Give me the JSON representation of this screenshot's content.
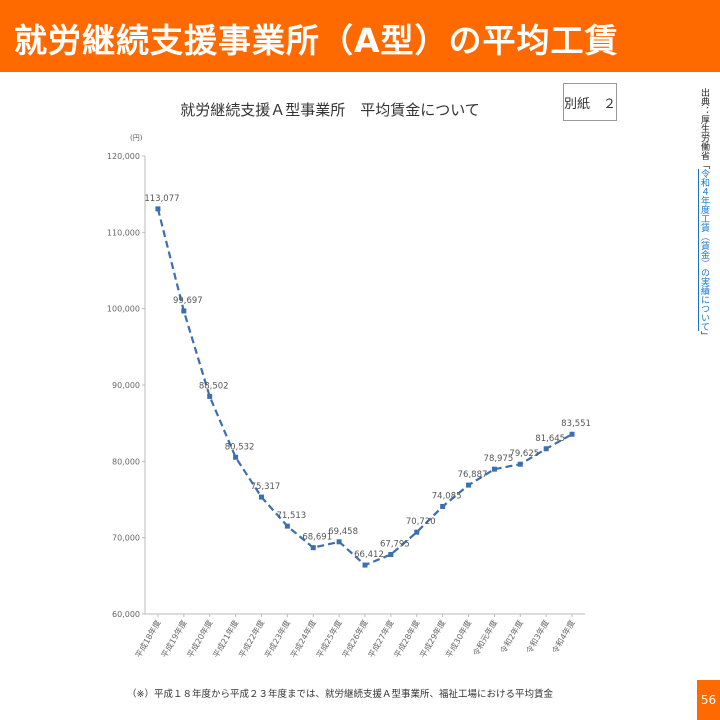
{
  "header": {
    "title": "就労継続支援事業所（A型）の平均工賃"
  },
  "attachment_label": "別紙　２",
  "source_note": {
    "prefix": "出典：厚生労働省「",
    "link_text": "令和４年度工賃（賃金）の実績について",
    "suffix": "」"
  },
  "footnote": "（※）平成１８年度から平成２３年度までは、就労継続支援Ａ型事業所、福祉工場における平均賃金",
  "page_number": "56",
  "colors": {
    "banner": "#ff6a00",
    "line": "#3b6fb0",
    "marker": "#3b6fb0"
  },
  "chart_data": {
    "type": "line",
    "title": "就労継続支援Ａ型事業所　平均賃金について",
    "ylabel": "(円)",
    "ylim": [
      60000,
      120000
    ],
    "yticks": [
      "60,000",
      "70,000",
      "80,000",
      "90,000",
      "100,000",
      "110,000",
      "120,000"
    ],
    "grid": false,
    "line_style": "dashed",
    "categories": [
      "平成18年度",
      "平成19年度",
      "平成20年度",
      "平成21年度",
      "平成22年度",
      "平成23年度",
      "平成24年度",
      "平成25年度",
      "平成26年度",
      "平成27年度",
      "平成28年度",
      "平成29年度",
      "平成30年度",
      "令和元年度",
      "令和2年度",
      "令和3年度",
      "令和4年度"
    ],
    "values": [
      113077,
      99697,
      88502,
      80532,
      75317,
      71513,
      68691,
      69458,
      66412,
      67795,
      70720,
      74085,
      76887,
      78975,
      79625,
      81645,
      83551
    ],
    "value_labels": [
      "113,077",
      "99,697",
      "88,502",
      "80,532",
      "75,317",
      "71,513",
      "68,691",
      "69,458",
      "66,412",
      "67,795",
      "70,720",
      "74,085",
      "76,887",
      "78,975",
      "79,625",
      "81,645",
      "83,551"
    ]
  }
}
